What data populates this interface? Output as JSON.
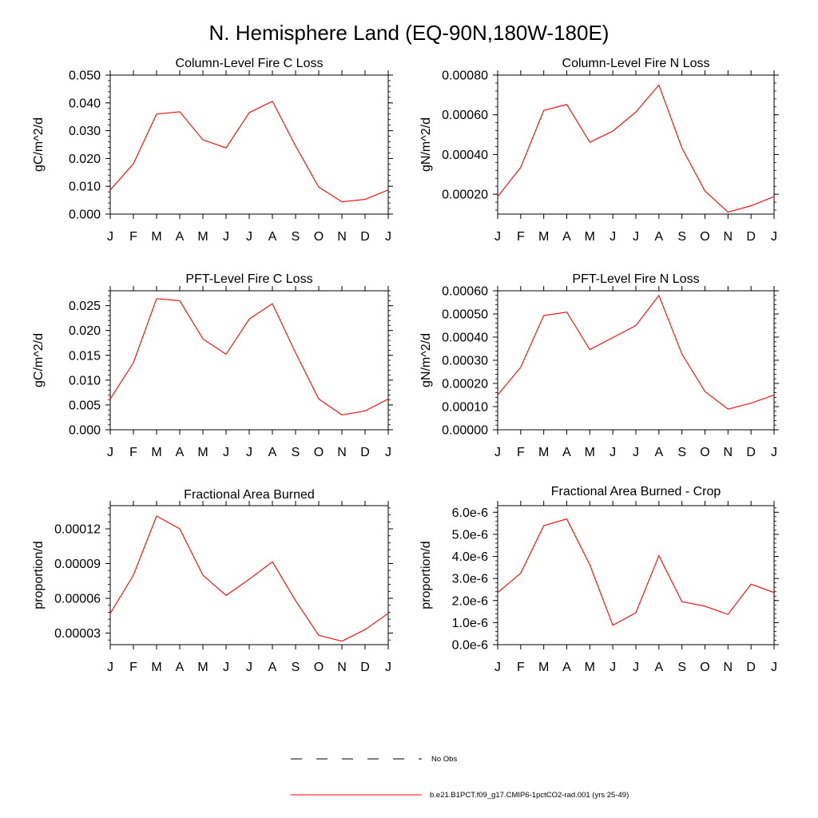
{
  "title": "N. Hemisphere Land (EQ-90N,180W-180E)",
  "colors": {
    "model_line": "#ff0000",
    "obs_line": "#000000",
    "axis": "#000000"
  },
  "legend": {
    "obs_label": "No Obs",
    "model_label": "b.e21.B1PCT.f09_g17.CMIP6-1pctCO2-rad.001 (yrs 25-49)"
  },
  "chart_data": [
    {
      "type": "line",
      "title": "Column-Level Fire C Loss",
      "ylabel": "gC/m^2/d",
      "categories": [
        "J",
        "F",
        "M",
        "A",
        "M",
        "J",
        "J",
        "A",
        "S",
        "O",
        "N",
        "D",
        "J"
      ],
      "ylim": [
        0,
        0.05
      ],
      "yticks": [
        0,
        0.01,
        0.02,
        0.03,
        0.04,
        0.05
      ],
      "ytick_labels": [
        "0.000",
        "0.010",
        "0.020",
        "0.030",
        "0.040",
        "0.050"
      ],
      "series": [
        {
          "values": [
            0.0087,
            0.0181,
            0.036,
            0.0368,
            0.0267,
            0.0238,
            0.0365,
            0.0406,
            0.0245,
            0.0097,
            0.0044,
            0.0053,
            0.0087
          ]
        }
      ]
    },
    {
      "type": "line",
      "title": "Column-Level Fire N Loss",
      "ylabel": "gN/m^2/d",
      "categories": [
        "J",
        "F",
        "M",
        "A",
        "M",
        "J",
        "J",
        "A",
        "S",
        "O",
        "N",
        "D",
        "J"
      ],
      "ylim": [
        0.0001,
        0.0008
      ],
      "yticks": [
        0.0002,
        0.0004,
        0.0006,
        0.0008
      ],
      "ytick_labels": [
        "0.00020",
        "0.00040",
        "0.00060",
        "0.00080"
      ],
      "series": [
        {
          "values": [
            0.000188,
            0.000335,
            0.000622,
            0.000652,
            0.000462,
            0.000518,
            0.000614,
            0.00075,
            0.000433,
            0.000216,
            0.00011,
            0.000142,
            0.000188
          ]
        }
      ]
    },
    {
      "type": "line",
      "title": "PFT-Level Fire C Loss",
      "ylabel": "gC/m^2/d",
      "categories": [
        "J",
        "F",
        "M",
        "A",
        "M",
        "J",
        "J",
        "A",
        "S",
        "O",
        "N",
        "D",
        "J"
      ],
      "ylim": [
        0,
        0.028
      ],
      "yticks": [
        0,
        0.005,
        0.01,
        0.015,
        0.02,
        0.025
      ],
      "ytick_labels": [
        "0.000",
        "0.005",
        "0.010",
        "0.015",
        "0.020",
        "0.025"
      ],
      "series": [
        {
          "values": [
            0.0062,
            0.0135,
            0.0264,
            0.026,
            0.0183,
            0.0152,
            0.0223,
            0.0254,
            0.0155,
            0.0062,
            0.003,
            0.0038,
            0.0062
          ]
        }
      ]
    },
    {
      "type": "line",
      "title": "PFT-Level Fire N Loss",
      "ylabel": "gN/m^2/d",
      "categories": [
        "J",
        "F",
        "M",
        "A",
        "M",
        "J",
        "J",
        "A",
        "S",
        "O",
        "N",
        "D",
        "J"
      ],
      "ylim": [
        0,
        0.0006
      ],
      "yticks": [
        0,
        0.0001,
        0.0002,
        0.0003,
        0.0004,
        0.0005,
        0.0006
      ],
      "ytick_labels": [
        "0.00000",
        "0.00010",
        "0.00020",
        "0.00030",
        "0.00040",
        "0.00050",
        "0.00060"
      ],
      "series": [
        {
          "values": [
            0.00015,
            0.00027,
            0.000493,
            0.000508,
            0.000346,
            0.000398,
            0.00045,
            0.00058,
            0.000327,
            0.000165,
            8.9e-05,
            0.000115,
            0.00015
          ]
        }
      ]
    },
    {
      "type": "line",
      "title": "Fractional Area Burned",
      "ylabel": "proportion/d",
      "categories": [
        "J",
        "F",
        "M",
        "A",
        "M",
        "J",
        "J",
        "A",
        "S",
        "O",
        "N",
        "D",
        "J"
      ],
      "ylim": [
        2e-05,
        0.00014
      ],
      "yticks": [
        3e-05,
        6e-05,
        9e-05,
        0.00012
      ],
      "ytick_labels": [
        "0.00003",
        "0.00006",
        "0.00009",
        "0.00012"
      ],
      "series": [
        {
          "values": [
            4.7e-05,
            8e-05,
            0.000131,
            0.00012,
            8e-05,
            6.25e-05,
            7.65e-05,
            9.15e-05,
            5.8e-05,
            2.8e-05,
            2.3e-05,
            3.3e-05,
            4.7e-05
          ]
        }
      ]
    },
    {
      "type": "line",
      "title": "Fractional Area Burned - Crop",
      "ylabel": "proportion/d",
      "categories": [
        "J",
        "F",
        "M",
        "A",
        "M",
        "J",
        "J",
        "A",
        "S",
        "O",
        "N",
        "D",
        "J"
      ],
      "ylim": [
        0,
        6.3e-06
      ],
      "yticks": [
        0,
        1e-06,
        2e-06,
        3e-06,
        4e-06,
        5e-06,
        6e-06
      ],
      "ytick_labels": [
        "0.0e-6",
        "1.0e-6",
        "2.0e-6",
        "3.0e-6",
        "4.0e-6",
        "5.0e-6",
        "6.0e-6"
      ],
      "series": [
        {
          "values": [
            2.36e-06,
            3.24e-06,
            5.39e-06,
            5.7e-06,
            3.62e-06,
            8.8e-07,
            1.45e-06,
            4.03e-06,
            1.95e-06,
            1.74e-06,
            1.37e-06,
            2.74e-06,
            2.36e-06
          ]
        }
      ]
    }
  ]
}
